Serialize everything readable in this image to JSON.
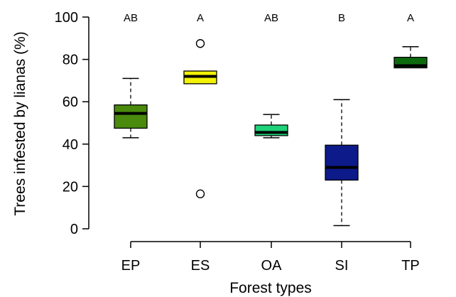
{
  "chart_data": {
    "type": "boxplot",
    "title": "",
    "xlabel": "Forest types",
    "ylabel": "Trees infested by lianas (%)",
    "ylim": [
      0,
      100
    ],
    "yticks": [
      0,
      20,
      40,
      60,
      80,
      100
    ],
    "grid": false,
    "categories": [
      "EP",
      "ES",
      "OA",
      "SI",
      "TP"
    ],
    "boxes": [
      {
        "category": "EP",
        "whisker_low": 43,
        "q1": 47.5,
        "median": 54.5,
        "q3": 58.5,
        "whisker_high": 71,
        "outliers": [],
        "color": "#4a8a0c",
        "group_letter": "AB"
      },
      {
        "category": "ES",
        "whisker_low": 68.5,
        "q1": 68.5,
        "median": 72,
        "q3": 74.5,
        "whisker_high": 74.5,
        "outliers": [
          16.5,
          87.5
        ],
        "color": "#f2f207",
        "group_letter": "A"
      },
      {
        "category": "OA",
        "whisker_low": 43,
        "q1": 44,
        "median": 45.5,
        "q3": 49,
        "whisker_high": 54,
        "outliers": [],
        "color": "#1fd17a",
        "group_letter": "AB"
      },
      {
        "category": "SI",
        "whisker_low": 1.5,
        "q1": 23,
        "median": 29,
        "q3": 39.5,
        "whisker_high": 61,
        "outliers": [],
        "color": "#0d1a8a",
        "group_letter": "B"
      },
      {
        "category": "TP",
        "whisker_low": 76,
        "q1": 76,
        "median": 77,
        "q3": 81,
        "whisker_high": 86,
        "outliers": [],
        "color": "#0d6b0d",
        "group_letter": "A"
      }
    ]
  }
}
